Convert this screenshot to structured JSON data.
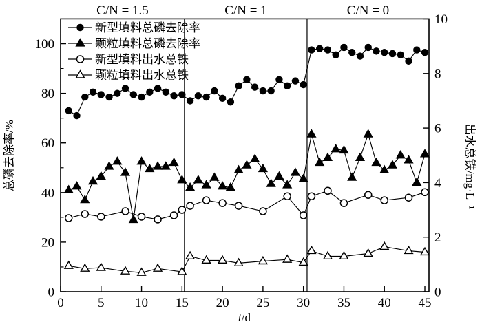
{
  "figure": {
    "background": "#ffffff",
    "series_color": "#000000"
  },
  "section_labels": [
    "C/N = 1.5",
    "C/N = 1",
    "C/N = 0"
  ],
  "x_axis": {
    "title_italic": "t",
    "title_rest": "/d",
    "ticks": [
      0,
      5,
      10,
      15,
      20,
      25,
      30,
      35,
      40,
      45
    ],
    "range": [
      0,
      45.5
    ]
  },
  "y_left": {
    "title": "总磷去除率/%",
    "ticks": [
      0,
      20,
      40,
      60,
      80,
      100
    ],
    "minor_ticks": [
      10,
      30,
      50,
      70,
      90
    ],
    "range": [
      0,
      110
    ]
  },
  "y_right": {
    "title": "出水总铁/mg·L⁻¹",
    "ticks": [
      0,
      2,
      4,
      6,
      8,
      10
    ],
    "range": [
      0,
      10
    ]
  },
  "chart_data": {
    "type": "line",
    "grid": false,
    "legend_position": "top-left-inside",
    "dividers_x": [
      15.3,
      30.45
    ],
    "series": [
      {
        "name": "新型填料总磷去除率",
        "marker": "circle-filled",
        "axis": "left",
        "x": [
          1,
          2,
          3,
          4,
          5,
          6,
          7,
          8,
          9,
          10,
          11,
          12,
          13,
          14,
          15,
          16,
          17,
          18,
          19,
          20,
          21,
          22,
          23,
          24,
          25,
          26,
          27,
          28,
          29,
          30,
          31,
          32,
          33,
          34,
          35,
          36,
          37,
          38,
          39,
          40,
          41,
          42,
          43,
          44,
          45
        ],
        "y": [
          73,
          71,
          78.5,
          80.5,
          79.5,
          78.5,
          80,
          82,
          79.5,
          78.5,
          80.5,
          82,
          80.5,
          79,
          79.5,
          77,
          79,
          78.5,
          81,
          78,
          76.5,
          83,
          85.5,
          82.5,
          81,
          81,
          85.5,
          83,
          85,
          83.5,
          97.5,
          98,
          97.5,
          95.5,
          98.5,
          96.5,
          95,
          98.5,
          97,
          96.5,
          96,
          95.5,
          93,
          97.5,
          96.5
        ]
      },
      {
        "name": "颗粒填料总磷去除率",
        "marker": "triangle-filled",
        "axis": "left",
        "x": [
          1,
          2,
          3,
          4,
          5,
          6,
          7,
          8,
          9,
          10,
          11,
          12,
          13,
          14,
          15,
          16,
          17,
          18,
          19,
          20,
          21,
          22,
          23,
          24,
          25,
          26,
          27,
          28,
          29,
          30,
          31,
          32,
          33,
          34,
          35,
          36,
          37,
          38,
          39,
          40,
          41,
          42,
          43,
          44,
          45
        ],
        "y": [
          41,
          42.5,
          37,
          44.5,
          46.5,
          50.5,
          52.5,
          48,
          29,
          52.5,
          49.5,
          50.5,
          50.5,
          52,
          45,
          42,
          45,
          43,
          46,
          42.5,
          42,
          49,
          51,
          53.5,
          49.5,
          43.5,
          46.5,
          43,
          48,
          45.5,
          63.5,
          52,
          54,
          57.5,
          57,
          46,
          54,
          63.5,
          52,
          49,
          51,
          55,
          53,
          44,
          55.5
        ]
      },
      {
        "name": "新型填料出水总铁",
        "marker": "circle-open",
        "axis": "right",
        "x": [
          1,
          3,
          5,
          8,
          10,
          12,
          14,
          15,
          16,
          18,
          20,
          22,
          25,
          28,
          30,
          31,
          33,
          35,
          38,
          40,
          43,
          45
        ],
        "y": [
          2.7,
          2.85,
          2.75,
          2.95,
          2.75,
          2.65,
          2.8,
          3.0,
          3.15,
          3.35,
          3.25,
          3.15,
          2.95,
          3.5,
          2.8,
          3.5,
          3.7,
          3.25,
          3.55,
          3.35,
          3.45,
          3.65
        ]
      },
      {
        "name": "颗粒填料出水总铁",
        "marker": "triangle-open",
        "axis": "right",
        "x": [
          1,
          3,
          5,
          8,
          10,
          12,
          15,
          16,
          18,
          20,
          22,
          25,
          28,
          30,
          31,
          33,
          35,
          38,
          40,
          43,
          45
        ],
        "y": [
          0.95,
          0.85,
          0.88,
          0.75,
          0.7,
          0.85,
          0.73,
          1.3,
          1.15,
          1.15,
          1.05,
          1.12,
          1.18,
          1.07,
          1.5,
          1.3,
          1.3,
          1.4,
          1.65,
          1.5,
          1.45
        ]
      }
    ]
  }
}
